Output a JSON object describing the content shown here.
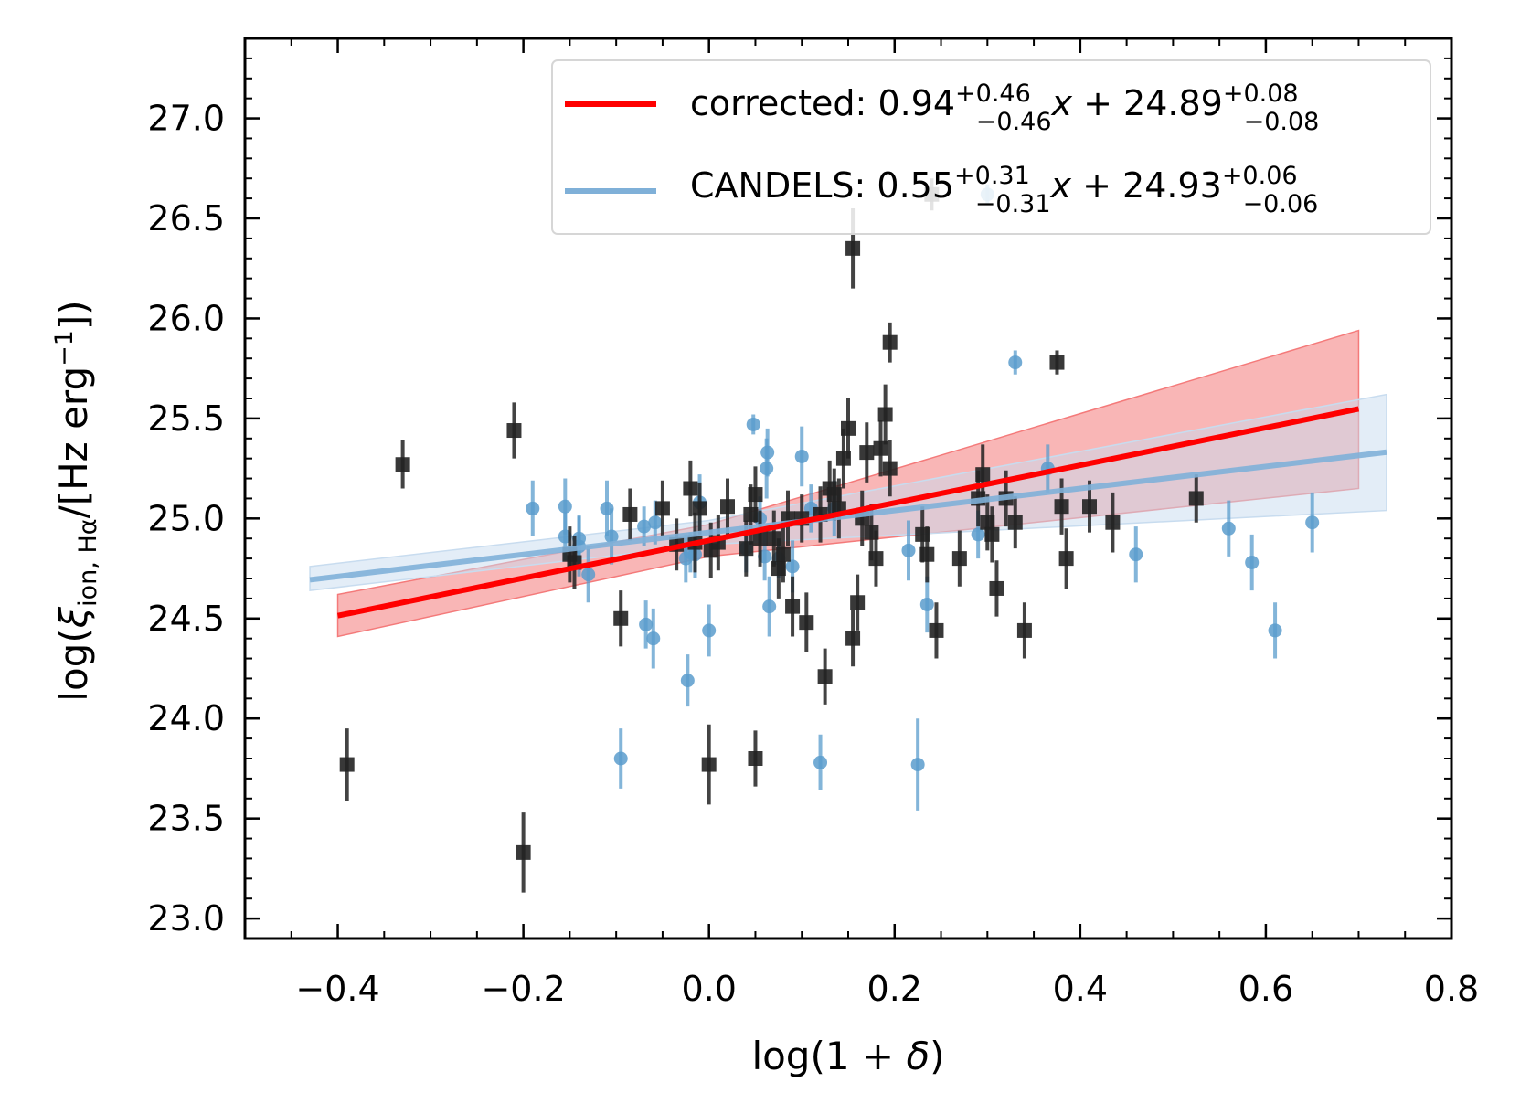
{
  "chart_data": {
    "type": "scatter",
    "xlabel_prefix": "log(1 + ",
    "xlabel_symbol": "δ",
    "xlabel_suffix": ")",
    "ylabel_prefix": "log(",
    "ylabel_xi": "ξ",
    "ylabel_sub": "ion, Hα",
    "ylabel_mid": "/[Hz erg",
    "ylabel_sup": "−1",
    "ylabel_suffix": "])",
    "xlim": [
      -0.5,
      0.8
    ],
    "ylim": [
      22.9,
      27.4
    ],
    "xticks": [
      -0.4,
      -0.2,
      0.0,
      0.2,
      0.4,
      0.6,
      0.8
    ],
    "xtick_labels": [
      "−0.4",
      "−0.2",
      "0.0",
      "0.2",
      "0.4",
      "0.6",
      "0.8"
    ],
    "yticks": [
      23.0,
      23.5,
      24.0,
      24.5,
      25.0,
      25.5,
      26.0,
      26.5,
      27.0
    ],
    "ytick_labels": [
      "23.0",
      "23.5",
      "24.0",
      "24.5",
      "25.0",
      "25.5",
      "26.0",
      "26.5",
      "27.0"
    ],
    "colors": {
      "corrected_line": "#ff0000",
      "corrected_band": "#f47a7a",
      "candels_line": "#7fb0d8",
      "candels_band": "#c8dcef",
      "candels_points": "#5a9ccc",
      "corrected_points": "#222222"
    },
    "legend": [
      {
        "key": "corrected",
        "label": "corrected: ",
        "slope": "0.94",
        "slope_up": "+0.46",
        "slope_dn": "−0.46",
        "var": "x",
        "op": " + ",
        "intercept": "24.89",
        "int_up": "+0.08",
        "int_dn": "−0.08"
      },
      {
        "key": "candels",
        "label": "CANDELS: ",
        "slope": "0.55",
        "slope_up": "+0.31",
        "slope_dn": "−0.31",
        "var": "x",
        "op": " + ",
        "intercept": "24.93",
        "int_up": "+0.06",
        "int_dn": "−0.06"
      }
    ],
    "fits": [
      {
        "name": "corrected",
        "slope": 0.94,
        "intercept": 24.89,
        "x_range": [
          -0.4,
          0.7
        ],
        "band": [
          [
            -0.4,
            24.41,
            24.62
          ],
          [
            0.0,
            24.81,
            24.97
          ],
          [
            0.7,
            25.15,
            25.94
          ]
        ]
      },
      {
        "name": "CANDELS",
        "slope": 0.55,
        "intercept": 24.93,
        "x_range": [
          -0.43,
          0.73
        ],
        "band": [
          [
            -0.43,
            24.64,
            24.76
          ],
          [
            0.0,
            24.87,
            24.99
          ],
          [
            0.73,
            25.04,
            25.62
          ]
        ]
      }
    ],
    "series": [
      {
        "name": "CANDELS",
        "points": [
          [
            -0.19,
            25.05,
            0.14
          ],
          [
            -0.155,
            25.06,
            0.14
          ],
          [
            -0.155,
            24.91,
            0.12
          ],
          [
            -0.14,
            24.9,
            0.12
          ],
          [
            -0.14,
            24.86,
            0.15
          ],
          [
            -0.13,
            24.72,
            0.14
          ],
          [
            -0.11,
            25.05,
            0.14
          ],
          [
            -0.105,
            24.91,
            0.14
          ],
          [
            -0.095,
            23.8,
            0.15
          ],
          [
            -0.07,
            24.96,
            0.1
          ],
          [
            -0.068,
            24.47,
            0.12
          ],
          [
            -0.06,
            24.4,
            0.15
          ],
          [
            -0.058,
            24.98,
            0.11
          ],
          [
            -0.025,
            24.8,
            0.12
          ],
          [
            -0.023,
            24.19,
            0.13
          ],
          [
            -0.02,
            24.83,
            0.1
          ],
          [
            -0.015,
            24.82,
            0.12
          ],
          [
            -0.01,
            25.08,
            0.14
          ],
          [
            0.0,
            24.44,
            0.13
          ],
          [
            0.04,
            24.85,
            0.12
          ],
          [
            0.055,
            25.0,
            0.11
          ],
          [
            0.06,
            24.81,
            0.12
          ],
          [
            0.062,
            25.25,
            0.15
          ],
          [
            0.063,
            25.33,
            0.12
          ],
          [
            0.065,
            24.56,
            0.15
          ],
          [
            0.075,
            24.8,
            0.1
          ],
          [
            0.09,
            24.76,
            0.13
          ],
          [
            0.1,
            25.31,
            0.15
          ],
          [
            0.11,
            25.05,
            0.12
          ],
          [
            0.12,
            23.78,
            0.14
          ],
          [
            0.135,
            25.05,
            0.14
          ],
          [
            0.215,
            24.84,
            0.15
          ],
          [
            0.225,
            23.77,
            0.23
          ],
          [
            0.235,
            24.57,
            0.14
          ],
          [
            0.29,
            24.92,
            0.12
          ],
          [
            0.33,
            25.78,
            0.06
          ],
          [
            0.365,
            25.25,
            0.12
          ],
          [
            0.46,
            24.82,
            0.14
          ],
          [
            0.56,
            24.95,
            0.14
          ],
          [
            0.585,
            24.78,
            0.14
          ],
          [
            0.61,
            24.44,
            0.14
          ],
          [
            0.65,
            24.98,
            0.15
          ],
          [
            0.3,
            26.62,
            0.05
          ],
          [
            0.0478,
            25.47,
            0.05
          ]
        ]
      },
      {
        "name": "corrected",
        "points": [
          [
            -0.39,
            23.77,
            0.18
          ],
          [
            -0.33,
            25.27,
            0.12
          ],
          [
            -0.21,
            25.44,
            0.14
          ],
          [
            -0.2,
            23.33,
            0.2
          ],
          [
            -0.15,
            24.82,
            0.14
          ],
          [
            -0.145,
            24.78,
            0.13
          ],
          [
            -0.095,
            24.5,
            0.14
          ],
          [
            -0.085,
            25.02,
            0.13
          ],
          [
            -0.05,
            25.05,
            0.14
          ],
          [
            -0.035,
            24.87,
            0.13
          ],
          [
            -0.02,
            25.15,
            0.14
          ],
          [
            -0.015,
            24.88,
            0.15
          ],
          [
            -0.01,
            25.05,
            0.13
          ],
          [
            0.0,
            23.77,
            0.2
          ],
          [
            0.002,
            24.84,
            0.14
          ],
          [
            0.01,
            24.88,
            0.14
          ],
          [
            0.02,
            25.06,
            0.14
          ],
          [
            0.04,
            24.85,
            0.14
          ],
          [
            0.045,
            25.02,
            0.15
          ],
          [
            0.05,
            25.12,
            0.14
          ],
          [
            0.05,
            23.8,
            0.14
          ],
          [
            0.055,
            24.9,
            0.14
          ],
          [
            0.07,
            24.9,
            0.14
          ],
          [
            0.075,
            24.75,
            0.15
          ],
          [
            0.08,
            24.82,
            0.14
          ],
          [
            0.085,
            25.0,
            0.14
          ],
          [
            0.09,
            24.56,
            0.15
          ],
          [
            0.1,
            25.0,
            0.12
          ],
          [
            0.105,
            24.48,
            0.15
          ],
          [
            0.12,
            25.02,
            0.14
          ],
          [
            0.125,
            24.21,
            0.14
          ],
          [
            0.13,
            25.15,
            0.14
          ],
          [
            0.135,
            25.12,
            0.13
          ],
          [
            0.14,
            25.05,
            0.15
          ],
          [
            0.145,
            25.3,
            0.15
          ],
          [
            0.15,
            25.45,
            0.15
          ],
          [
            0.155,
            24.4,
            0.14
          ],
          [
            0.155,
            26.35,
            0.2
          ],
          [
            0.16,
            24.58,
            0.14
          ],
          [
            0.165,
            25.0,
            0.14
          ],
          [
            0.17,
            25.33,
            0.15
          ],
          [
            0.175,
            24.93,
            0.14
          ],
          [
            0.18,
            24.8,
            0.14
          ],
          [
            0.185,
            25.35,
            0.14
          ],
          [
            0.19,
            25.52,
            0.15
          ],
          [
            0.195,
            25.25,
            0.14
          ],
          [
            0.195,
            25.88,
            0.1
          ],
          [
            0.23,
            24.92,
            0.14
          ],
          [
            0.235,
            24.82,
            0.14
          ],
          [
            0.245,
            24.44,
            0.14
          ],
          [
            0.27,
            24.8,
            0.14
          ],
          [
            0.29,
            25.1,
            0.14
          ],
          [
            0.295,
            25.22,
            0.15
          ],
          [
            0.3,
            24.98,
            0.14
          ],
          [
            0.305,
            24.92,
            0.14
          ],
          [
            0.31,
            24.65,
            0.14
          ],
          [
            0.32,
            25.1,
            0.14
          ],
          [
            0.33,
            24.98,
            0.13
          ],
          [
            0.34,
            24.44,
            0.14
          ],
          [
            0.375,
            25.78,
            0.06
          ],
          [
            0.38,
            25.06,
            0.14
          ],
          [
            0.385,
            24.8,
            0.15
          ],
          [
            0.41,
            25.06,
            0.13
          ],
          [
            0.435,
            24.98,
            0.15
          ],
          [
            0.525,
            25.1,
            0.12
          ],
          [
            0.24,
            26.62,
            0.08
          ]
        ]
      }
    ]
  }
}
